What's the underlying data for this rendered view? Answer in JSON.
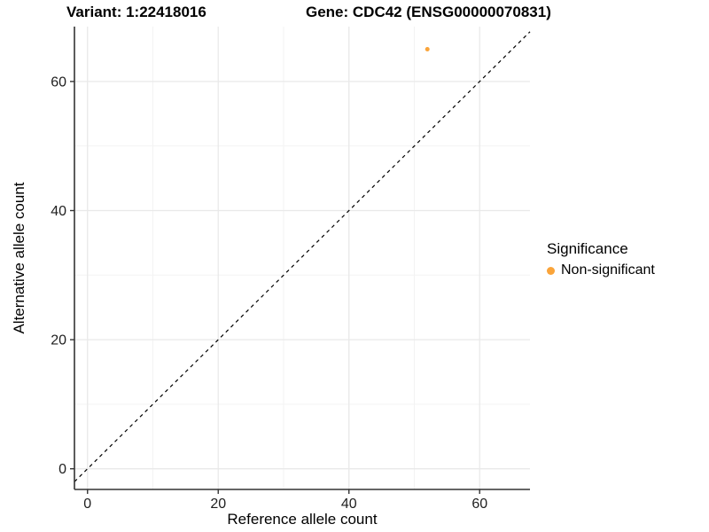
{
  "chart_data": {
    "type": "scatter",
    "title_variant": "Variant: 1:22418016",
    "title_gene": "Gene: CDC42 (ENSG00000070831)",
    "xlabel": "Reference allele count",
    "ylabel": "Alternative allele count",
    "xlim": [
      -2,
      67.7
    ],
    "ylim": [
      -3.2,
      68.5
    ],
    "x_ticks": [
      0,
      20,
      40,
      60
    ],
    "y_ticks": [
      0,
      20,
      40,
      60
    ],
    "x_minor_gridlines": [
      10,
      30,
      50
    ],
    "y_minor_gridlines": [
      10,
      30,
      50
    ],
    "grid": "major+minor",
    "series": [
      {
        "name": "Non-significant",
        "color": "#FAA43A",
        "points": [
          {
            "x": 52,
            "y": 65
          }
        ]
      }
    ],
    "identity_line": {
      "equation": "y = x",
      "style": "dashed",
      "color": "#000000"
    },
    "legend": {
      "title": "Significance",
      "position": "right",
      "items": [
        {
          "label": "Non-significant",
          "color": "#FAA43A"
        }
      ]
    },
    "colors": {
      "point": "#FAA43A",
      "grid_major": "#E9E9E9",
      "grid_minor": "#F3F3F3",
      "axis_line": "#333333",
      "tick_text": "#202020",
      "background": "#FFFFFF"
    }
  }
}
